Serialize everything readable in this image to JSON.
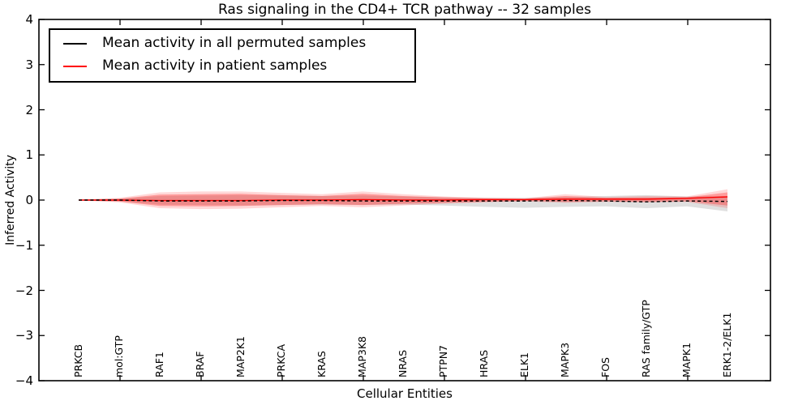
{
  "title": "Ras signaling in the CD4+ TCR pathway -- 32 samples",
  "legend": {
    "items": [
      {
        "label": "Mean activity in all permuted samples",
        "color": "#000000"
      },
      {
        "label": "Mean activity in patient samples",
        "color": "#ff0000"
      }
    ]
  },
  "axes": {
    "x_label": "Cellular Entities",
    "y_label": "Inferred Activity",
    "y_ticks": [
      "4",
      "3",
      "2",
      "1",
      "0",
      "−1",
      "−2",
      "−3",
      "−4"
    ]
  },
  "chart_data": {
    "type": "line",
    "title": "Ras signaling in the CD4+ TCR pathway -- 32 samples",
    "xlabel": "Cellular Entities",
    "ylabel": "Inferred Activity",
    "ylim": [
      -4,
      4
    ],
    "grid": false,
    "legend_position": "upper left",
    "categories": [
      "PRKCB",
      "mol:GTP",
      "RAF1",
      "BRAF",
      "MAP2K1",
      "PRKCA",
      "KRAS",
      "MAP3K8",
      "NRAS",
      "PTPN7",
      "HRAS",
      "ELK1",
      "MAPK3",
      "FOS",
      "RAS family/GTP",
      "MAPK1",
      "ERK1-2/ELK1"
    ],
    "series": [
      {
        "name": "Mean activity in all permuted samples",
        "color": "#000000",
        "line_style": "dashed",
        "values": [
          0.0,
          0.0,
          -0.02,
          -0.02,
          -0.02,
          -0.01,
          -0.01,
          -0.02,
          -0.02,
          -0.02,
          -0.02,
          -0.02,
          -0.01,
          -0.02,
          -0.04,
          -0.02,
          -0.03
        ]
      },
      {
        "name": "Mean activity in patient samples",
        "color": "#ff0000",
        "line_style": "solid",
        "values": [
          0.0,
          0.0,
          -0.01,
          -0.01,
          -0.01,
          0.0,
          0.0,
          0.01,
          0.0,
          0.0,
          0.01,
          0.01,
          0.02,
          0.02,
          0.02,
          0.04,
          0.07
        ]
      }
    ],
    "bands": [
      {
        "name": "permuted-samples-std",
        "fill": "rgba(110,110,110,0.22)",
        "upper": [
          0.01,
          0.03,
          0.09,
          0.1,
          0.11,
          0.1,
          0.09,
          0.1,
          0.08,
          0.06,
          0.05,
          0.05,
          0.07,
          0.09,
          0.11,
          0.08,
          0.09
        ],
        "lower": [
          -0.01,
          -0.03,
          -0.1,
          -0.11,
          -0.12,
          -0.11,
          -0.1,
          -0.11,
          -0.1,
          -0.12,
          -0.15,
          -0.17,
          -0.15,
          -0.14,
          -0.18,
          -0.14,
          -0.25
        ]
      },
      {
        "name": "patient-samples-std-outer",
        "fill": "rgba(255,40,40,0.18)",
        "upper": [
          0.01,
          0.05,
          0.17,
          0.19,
          0.19,
          0.16,
          0.13,
          0.19,
          0.13,
          0.08,
          0.05,
          0.04,
          0.13,
          0.07,
          0.09,
          0.08,
          0.24
        ],
        "lower": [
          -0.01,
          -0.05,
          -0.18,
          -0.2,
          -0.19,
          -0.16,
          -0.13,
          -0.16,
          -0.12,
          -0.08,
          -0.05,
          -0.03,
          -0.06,
          -0.04,
          -0.05,
          -0.04,
          -0.18
        ]
      },
      {
        "name": "patient-samples-std-inner",
        "fill": "rgba(255,40,40,0.34)",
        "upper": [
          0.005,
          0.03,
          0.12,
          0.13,
          0.14,
          0.11,
          0.09,
          0.14,
          0.09,
          0.06,
          0.04,
          0.03,
          0.09,
          0.05,
          0.06,
          0.06,
          0.17
        ],
        "lower": [
          -0.005,
          -0.03,
          -0.13,
          -0.14,
          -0.13,
          -0.11,
          -0.09,
          -0.11,
          -0.08,
          -0.06,
          -0.04,
          -0.02,
          -0.04,
          -0.03,
          -0.04,
          -0.03,
          -0.12
        ]
      }
    ]
  }
}
